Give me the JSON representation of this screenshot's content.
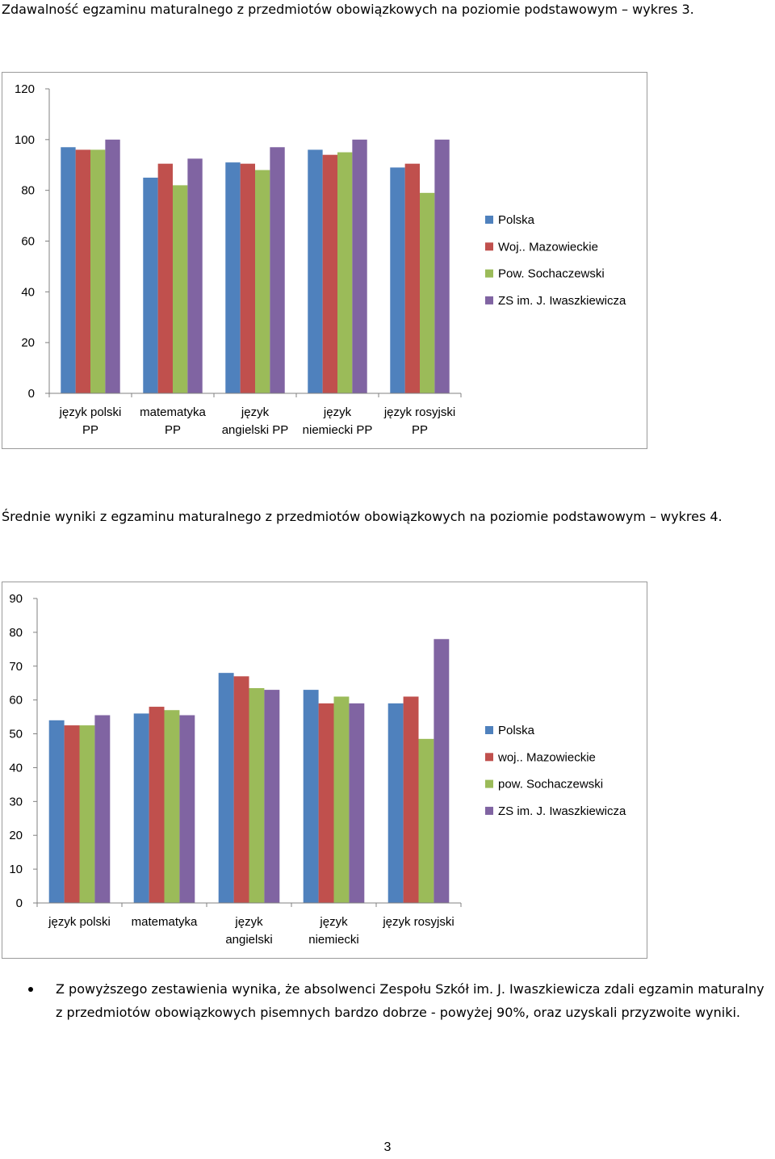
{
  "heading3": "Zdawalność egzaminu maturalnego z przedmiotów obowiązkowych na poziomie podstawowym – wykres 3.",
  "heading4": "Średnie wyniki z egzaminu maturalnego z przedmiotów obowiązkowych na poziomie podstawowym – wykres 4.",
  "colors": {
    "blue": "#4f81bd",
    "red": "#c0504d",
    "green": "#9bbb59",
    "purple": "#8064a2"
  },
  "chart_data": [
    {
      "type": "bar",
      "categories": [
        [
          "język polski",
          "PP"
        ],
        [
          "matematyka",
          "PP"
        ],
        [
          "język",
          "angielski PP"
        ],
        [
          "język",
          "niemiecki PP"
        ],
        [
          "język rosyjski",
          "PP"
        ]
      ],
      "ylim": [
        0,
        120
      ],
      "yticks": [
        0,
        20,
        40,
        60,
        80,
        100,
        120
      ],
      "grid": false,
      "legend": "right",
      "series": [
        {
          "name": "Polska",
          "color": "#4f81bd",
          "values": [
            97,
            85,
            91,
            96,
            89
          ]
        },
        {
          "name": "Woj.. Mazowieckie",
          "color": "#c0504d",
          "values": [
            96,
            90.5,
            90.5,
            94,
            90.5
          ]
        },
        {
          "name": "Pow. Sochaczewski",
          "color": "#9bbb59",
          "values": [
            96,
            82,
            88,
            95,
            79
          ]
        },
        {
          "name": "ZS im. J. Iwaszkiewicza",
          "color": "#8064a2",
          "values": [
            100,
            92.5,
            97,
            100,
            100
          ]
        }
      ]
    },
    {
      "type": "bar",
      "categories": [
        [
          "język polski"
        ],
        [
          "matematyka"
        ],
        [
          "język",
          "angielski"
        ],
        [
          "język",
          "niemiecki"
        ],
        [
          "język rosyjski"
        ]
      ],
      "ylim": [
        0,
        90
      ],
      "yticks": [
        0,
        10,
        20,
        30,
        40,
        50,
        60,
        70,
        80,
        90
      ],
      "grid": false,
      "legend": "right",
      "series": [
        {
          "name": "Polska",
          "color": "#4f81bd",
          "values": [
            54,
            56,
            68,
            63,
            59
          ]
        },
        {
          "name": "woj.. Mazowieckie",
          "color": "#c0504d",
          "values": [
            52.5,
            58,
            67,
            59,
            61
          ]
        },
        {
          "name": "pow. Sochaczewski",
          "color": "#9bbb59",
          "values": [
            52.5,
            57,
            63.5,
            61,
            48.5
          ]
        },
        {
          "name": "ZS im. J. Iwaszkiewicza",
          "color": "#8064a2",
          "values": [
            55.5,
            55.5,
            63,
            59,
            78
          ]
        }
      ]
    }
  ],
  "bullet_text": "Z powyższego zestawienia wynika, że absolwenci Zespołu Szkół im. J. Iwaszkiewicza zdali egzamin maturalny z przedmiotów obowiązkowych pisemnych bardzo dobrze - powyżej 90%, oraz uzyskali przyzwoite wyniki.",
  "page_number": "3"
}
